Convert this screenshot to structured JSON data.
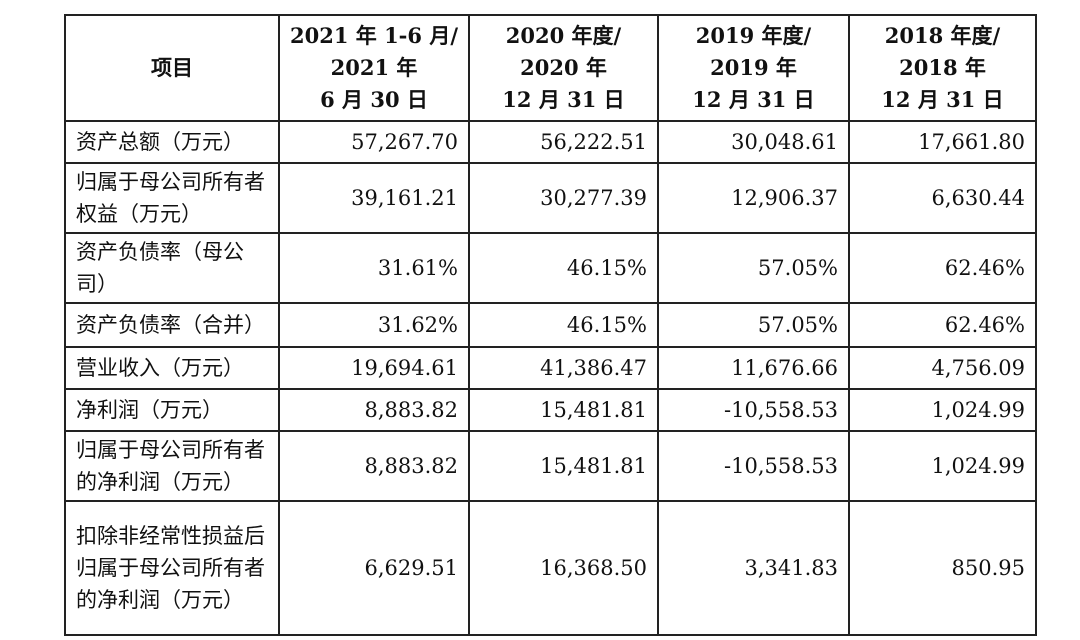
{
  "table": {
    "headers": [
      {
        "lines": [
          "项目"
        ]
      },
      {
        "lines": [
          "2021 年 1-6 月/",
          "2021 年",
          "6 月 30 日"
        ]
      },
      {
        "lines": [
          "2020 年度/",
          "2020 年",
          "12 月 31 日"
        ]
      },
      {
        "lines": [
          "2019 年度/",
          "2019 年",
          "12 月 31 日"
        ]
      },
      {
        "lines": [
          "2018 年度/",
          "2018 年",
          "12 月 31 日"
        ]
      }
    ],
    "rows": [
      {
        "item": "资产总额（万元）",
        "values": [
          "57,267.70",
          "56,222.51",
          "30,048.61",
          "17,661.80"
        ]
      },
      {
        "item": "归属于母公司所有者权益（万元）",
        "values": [
          "39,161.21",
          "30,277.39",
          "12,906.37",
          "6,630.44"
        ]
      },
      {
        "item": "资产负债率（母公司）",
        "values": [
          "31.61%",
          "46.15%",
          "57.05%",
          "62.46%"
        ]
      },
      {
        "item": "资产负债率（合并）",
        "values": [
          "31.62%",
          "46.15%",
          "57.05%",
          "62.46%"
        ]
      },
      {
        "item": "营业收入（万元）",
        "values": [
          "19,694.61",
          "41,386.47",
          "11,676.66",
          "4,756.09"
        ]
      },
      {
        "item": "净利润（万元）",
        "values": [
          "8,883.82",
          "15,481.81",
          "-10,558.53",
          "1,024.99"
        ]
      },
      {
        "item": "归属于母公司所有者的净利润（万元）",
        "values": [
          "8,883.82",
          "15,481.81",
          "-10,558.53",
          "1,024.99"
        ]
      },
      {
        "item": "扣除非经常性损益后归属于母公司所有者的净利润（万元）",
        "values": [
          "6,629.51",
          "16,368.50",
          "3,341.83",
          "850.95"
        ]
      }
    ]
  }
}
